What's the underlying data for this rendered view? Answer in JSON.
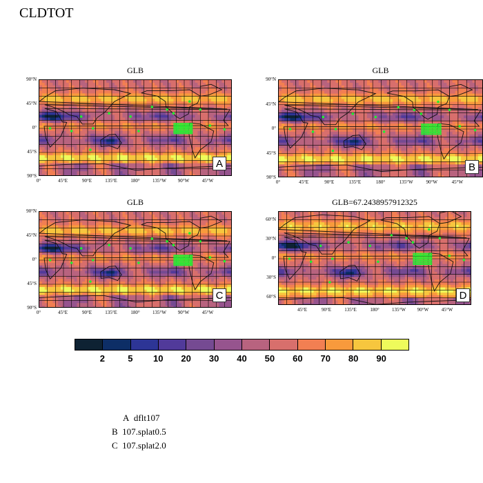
{
  "title": "CLDTOT",
  "panels": [
    {
      "id": "A",
      "title": "GLB",
      "corner": "A",
      "lat_ticks": [
        "90°N",
        "45°N",
        "0°",
        "45°S",
        "90°S"
      ],
      "lon_ticks": [
        "0°",
        "45°E",
        "90°E",
        "135°E",
        "180°",
        "135°W",
        "90°W",
        "45°W"
      ]
    },
    {
      "id": "B",
      "title": "GLB",
      "corner": "B",
      "lat_ticks": [
        "90°N",
        "45°N",
        "0°",
        "45°S",
        "90°S"
      ],
      "lon_ticks": [
        "0°",
        "45°E",
        "90°E",
        "135°E",
        "180°",
        "135°W",
        "90°W",
        "45°W"
      ]
    },
    {
      "id": "C",
      "title": "GLB",
      "corner": "C",
      "lat_ticks": [
        "90°N",
        "45°N",
        "0°",
        "45°S",
        "90°S"
      ],
      "lon_ticks": [
        "0°",
        "45°E",
        "90°E",
        "135°E",
        "180°",
        "135°W",
        "90°W",
        "45°W"
      ]
    },
    {
      "id": "D",
      "title": "GLB=67.2438957912325",
      "corner": "D",
      "lat_ticks": [
        "60°N",
        "30°N",
        "0°",
        "30°S",
        "60°S"
      ],
      "lon_ticks": [
        "45°E",
        "90°E",
        "135°E",
        "180°",
        "135°W",
        "90°W",
        "45°W"
      ]
    }
  ],
  "colorbar": {
    "colors": [
      "#0e2233",
      "#0d2e66",
      "#2d3596",
      "#513a9a",
      "#754a92",
      "#96548e",
      "#b8637f",
      "#d86f6c",
      "#f27f52",
      "#f89a3c",
      "#f7c63e",
      "#eefb5b"
    ],
    "labels": [
      "2",
      "5",
      "10",
      "20",
      "30",
      "40",
      "50",
      "60",
      "70",
      "80",
      "90"
    ]
  },
  "legend": [
    {
      "key": "A",
      "text": "dflt107"
    },
    {
      "key": "B",
      "text": "107.splat0.5"
    },
    {
      "key": "C",
      "text": "107.splat2.0"
    }
  ]
}
